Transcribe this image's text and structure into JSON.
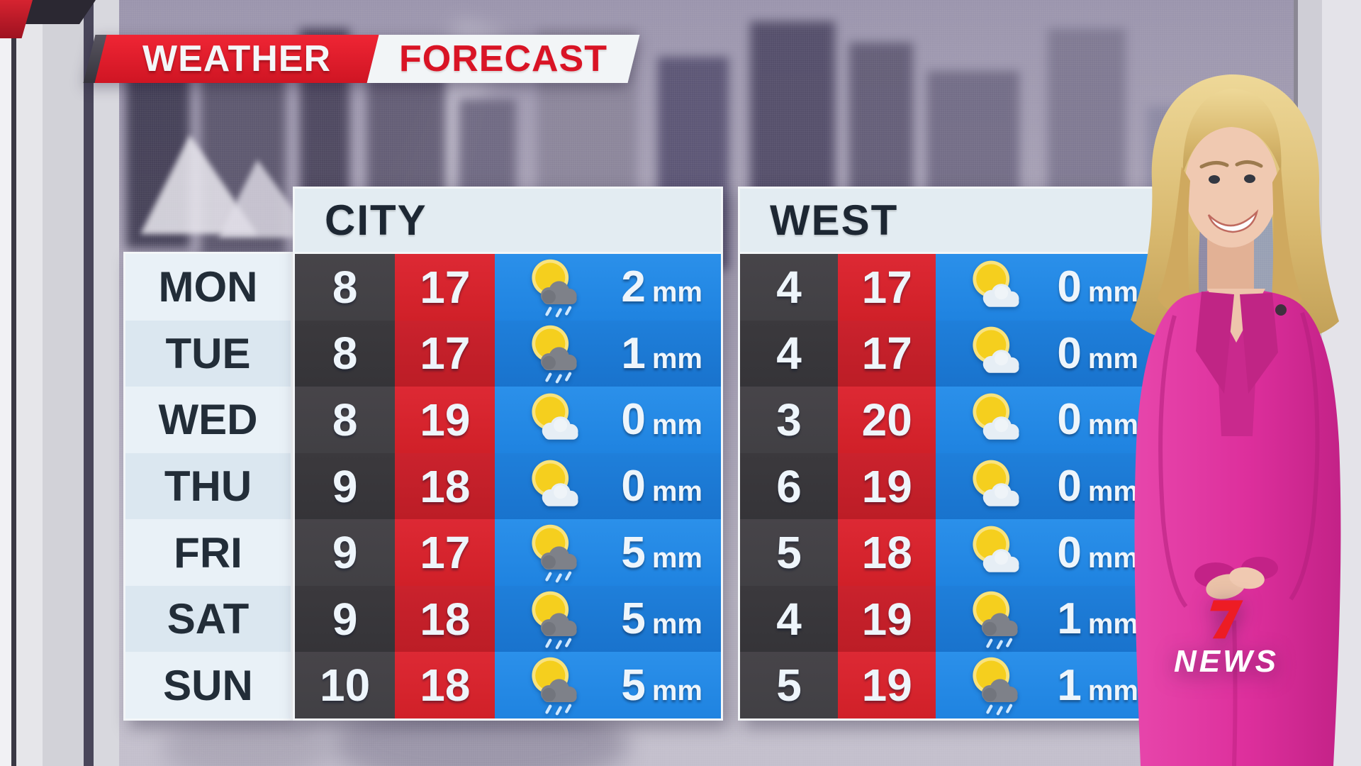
{
  "banner": {
    "left": "WEATHER",
    "right": "FORECAST"
  },
  "days": [
    "MON",
    "TUE",
    "WED",
    "THU",
    "FRI",
    "SAT",
    "SUN"
  ],
  "rain_unit": "mm",
  "tables": [
    {
      "name": "CITY",
      "rows": [
        {
          "low": "8",
          "high": "17",
          "icon": "sun-rain-icon",
          "rain": "2"
        },
        {
          "low": "8",
          "high": "17",
          "icon": "sun-rain-icon",
          "rain": "1"
        },
        {
          "low": "8",
          "high": "19",
          "icon": "sun-cloud-icon",
          "rain": "0"
        },
        {
          "low": "9",
          "high": "18",
          "icon": "sun-cloud-icon",
          "rain": "0"
        },
        {
          "low": "9",
          "high": "17",
          "icon": "sun-rain-icon",
          "rain": "5"
        },
        {
          "low": "9",
          "high": "18",
          "icon": "sun-rain-icon",
          "rain": "5"
        },
        {
          "low": "10",
          "high": "18",
          "icon": "sun-rain-icon",
          "rain": "5"
        }
      ]
    },
    {
      "name": "WEST",
      "rows": [
        {
          "low": "4",
          "high": "17",
          "icon": "sun-cloud-icon",
          "rain": "0"
        },
        {
          "low": "4",
          "high": "17",
          "icon": "sun-cloud-icon",
          "rain": "0"
        },
        {
          "low": "3",
          "high": "20",
          "icon": "sun-cloud-icon",
          "rain": "0"
        },
        {
          "low": "6",
          "high": "19",
          "icon": "sun-cloud-icon",
          "rain": "0"
        },
        {
          "low": "5",
          "high": "18",
          "icon": "sun-cloud-icon",
          "rain": "0"
        },
        {
          "low": "4",
          "high": "19",
          "icon": "sun-rain-icon",
          "rain": "1"
        },
        {
          "low": "5",
          "high": "19",
          "icon": "sun-rain-icon",
          "rain": "1"
        }
      ]
    }
  ],
  "icons": {
    "sun-cloud-icon": "sun behind light cloud (partly cloudy)",
    "sun-rain-icon": "sun behind dark cloud with rain (showers)"
  },
  "logo": {
    "seven": "7",
    "wordmark": "NEWS"
  },
  "colors": {
    "banner-red": "#cf1523",
    "banner-text": "#f4f7f9",
    "forecast-text": "#d91425",
    "header-bg": "#e3ecf2",
    "header-text": "#1d2733",
    "day-bg-a": "#e9f1f7",
    "day-bg-b": "#dbe7f0",
    "day-text": "#222d38",
    "low-bg-a": "#414044",
    "low-bg-b": "#353438",
    "high-bg-a": "#d02028",
    "high-bg-b": "#bc1d26",
    "rain-bg-a": "#1f83e0",
    "rain-bg-b": "#1973cd",
    "cell-text": "#eef5fb",
    "sun-yellow": "#f5cf1e",
    "cloud-light": "#e6eef5",
    "cloud-dark": "#7e8189",
    "rain-drop": "#cfe8ff",
    "logo-red": "#ed1c24",
    "logo-text": "#ffffff",
    "suit-pink": "#dd2f9c"
  }
}
